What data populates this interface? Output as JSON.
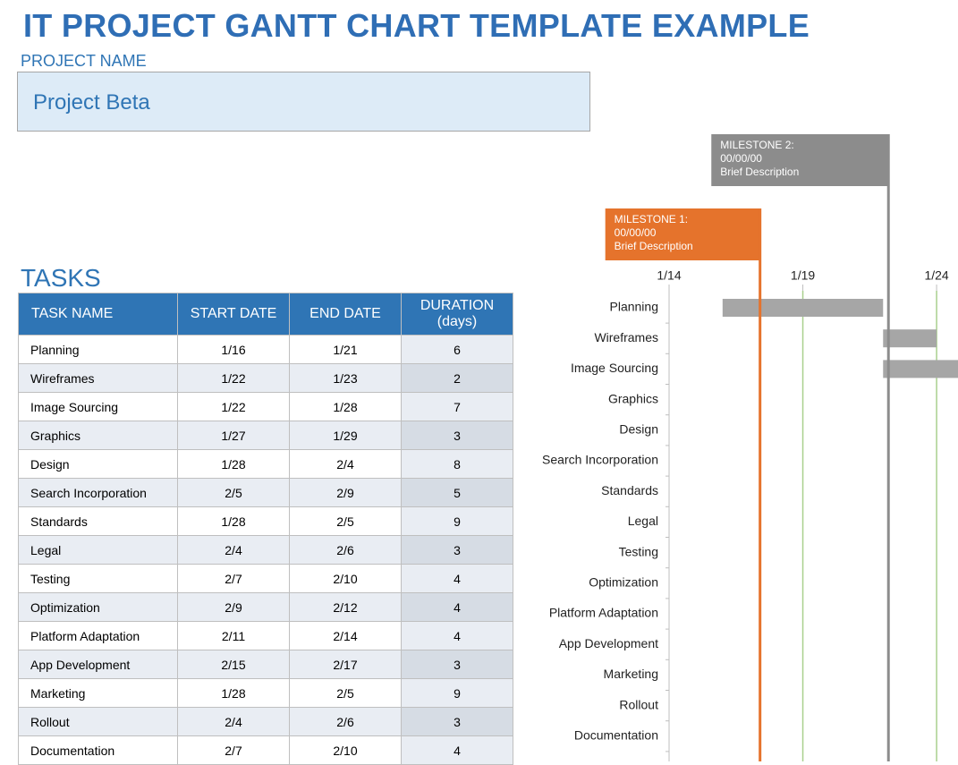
{
  "title": "IT PROJECT GANTT CHART TEMPLATE EXAMPLE",
  "project_name_label": "PROJECT NAME",
  "project_name": "Project Beta",
  "tasks_label": "TASKS",
  "table": {
    "columns": [
      "TASK NAME",
      "START DATE",
      "END DATE",
      "DURATION (days)"
    ],
    "rows": [
      [
        "Planning",
        "1/16",
        "1/21",
        6
      ],
      [
        "Wireframes",
        "1/22",
        "1/23",
        2
      ],
      [
        "Image Sourcing",
        "1/22",
        "1/28",
        7
      ],
      [
        "Graphics",
        "1/27",
        "1/29",
        3
      ],
      [
        "Design",
        "1/28",
        "2/4",
        8
      ],
      [
        "Search Incorporation",
        "2/5",
        "2/9",
        5
      ],
      [
        "Standards",
        "1/28",
        "2/5",
        9
      ],
      [
        "Legal",
        "2/4",
        "2/6",
        3
      ],
      [
        "Testing",
        "2/7",
        "2/10",
        4
      ],
      [
        "Optimization",
        "2/9",
        "2/12",
        4
      ],
      [
        "Platform Adaptation",
        "2/11",
        "2/14",
        4
      ],
      [
        "App Development",
        "2/15",
        "2/17",
        3
      ],
      [
        "Marketing",
        "1/28",
        "2/5",
        9
      ],
      [
        "Rollout",
        "2/4",
        "2/6",
        3
      ],
      [
        "Documentation",
        "2/7",
        "2/10",
        4
      ]
    ]
  },
  "chart_data": {
    "type": "gantt",
    "color": "#a6a6a6",
    "grid_color": "#a9d08e",
    "xlim": [
      14,
      24.8
    ],
    "xticks": [
      {
        "value": 14,
        "label": "1/14"
      },
      {
        "value": 19,
        "label": "1/19"
      },
      {
        "value": 24,
        "label": "1/24"
      }
    ],
    "milestones": [
      {
        "title": "MILESTONE 1:",
        "date": "00/00/00",
        "description": "Brief Description",
        "position": 17.4,
        "color": "#e5732c"
      },
      {
        "title": "MILESTONE 2:",
        "date": "00/00/00",
        "description": "Brief Description",
        "position": 22.2,
        "color": "#8c8c8c"
      }
    ]
  }
}
